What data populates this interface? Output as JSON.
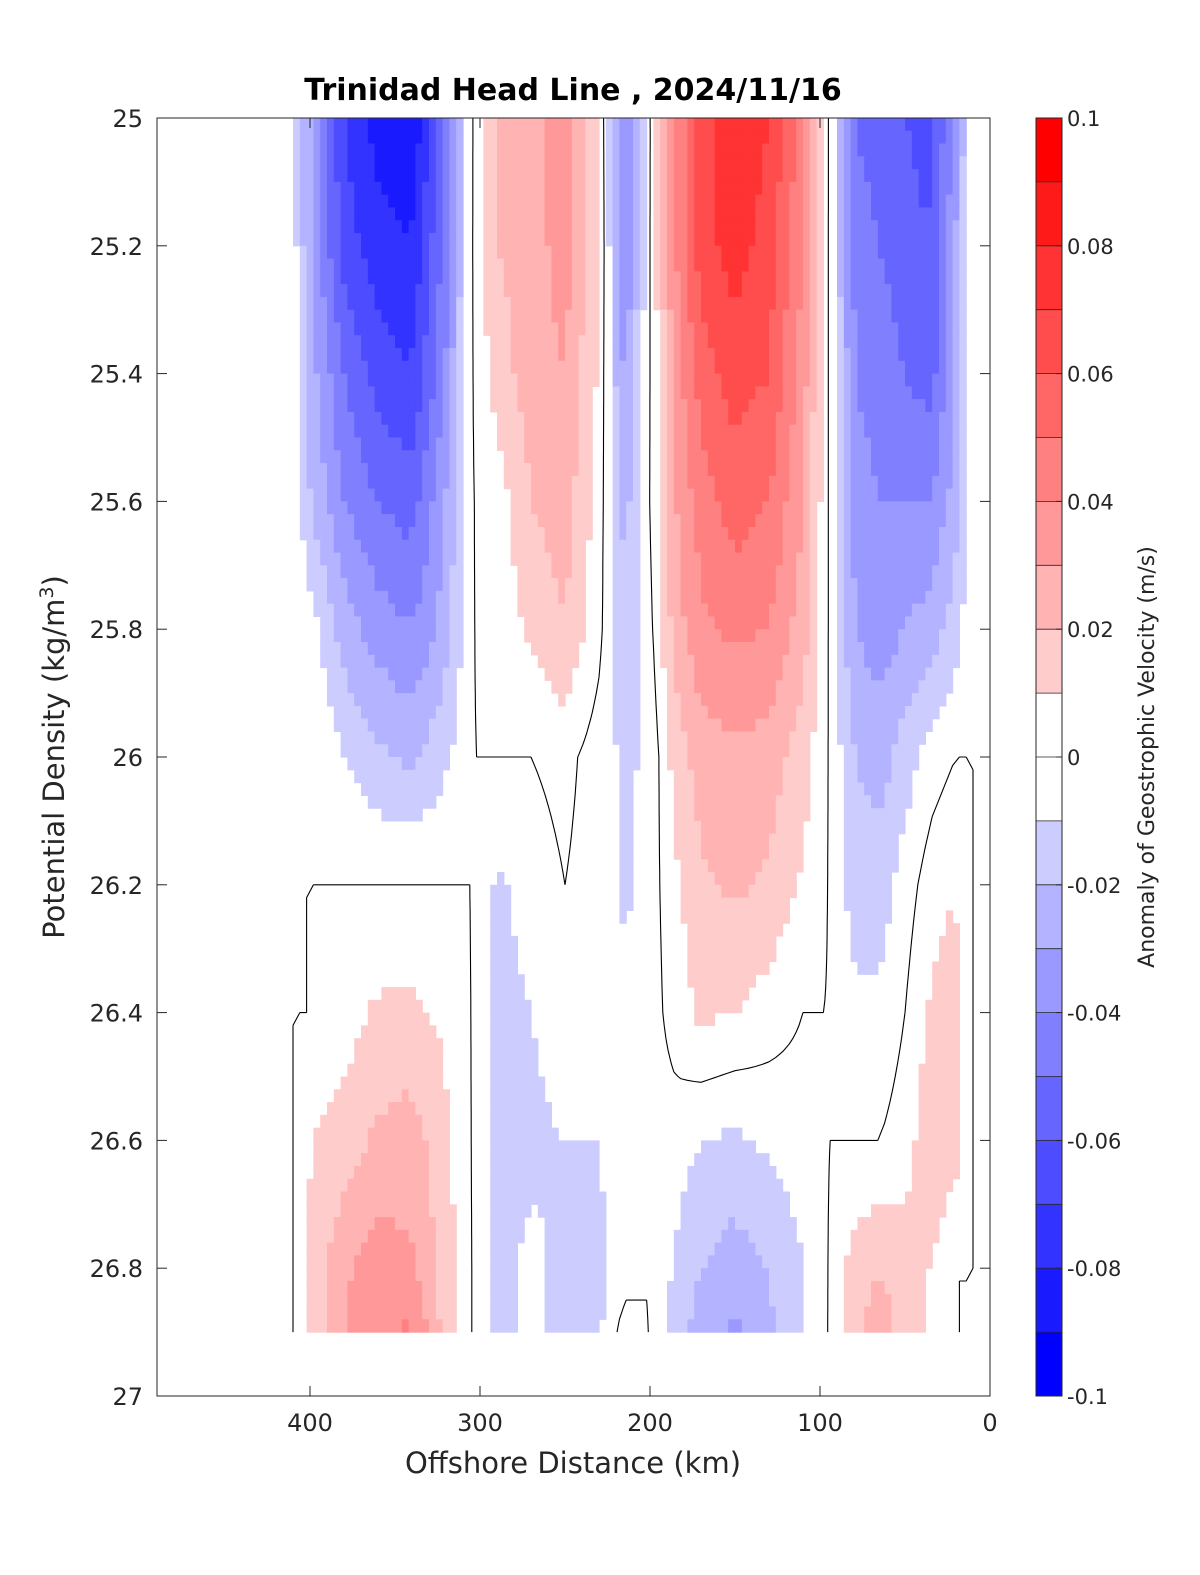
{
  "chart_data": {
    "type": "heatmap",
    "title": "Trinidad Head Line , 2024/11/16",
    "xlabel": "Offshore Distance (km)",
    "ylabel_main": "Potential Density (kg/m",
    "ylabel_sup": "3",
    "ylabel_close": ")",
    "colorbar_label": "Anomaly of Geostrophic Velocity (m/s)",
    "x_reversed": true,
    "xlim": [
      490,
      0
    ],
    "ylim": [
      25,
      27
    ],
    "y_reversed": true,
    "x_ticks": [
      400,
      300,
      200,
      100,
      0
    ],
    "y_ticks": [
      25,
      25.2,
      25.4,
      25.6,
      25.8,
      26,
      26.2,
      26.4,
      26.6,
      26.8,
      27
    ],
    "y_tick_labels": [
      "25",
      "25.2",
      "25.4",
      "25.6",
      "25.8",
      "26",
      "26.2",
      "26.4",
      "26.6",
      "26.8",
      "27"
    ],
    "colorbar_ticks": [
      0.1,
      0.08,
      0.06,
      0.04,
      0.02,
      0,
      -0.02,
      -0.04,
      -0.06,
      -0.08,
      -0.1
    ],
    "colorbar_tick_labels": [
      "0.1",
      "0.08",
      "0.06",
      "0.04",
      "0.02",
      "0",
      "-0.02",
      "-0.04",
      "-0.06",
      "-0.08",
      "-0.1"
    ],
    "clim": [
      -0.1,
      0.1
    ],
    "level_step": 0.01,
    "colormap": "blue-white-red",
    "colors": {
      "max_red": "#ff0000",
      "max_blue": "#0000ff",
      "zero": "#ffffff",
      "contour_line": "#000000"
    },
    "data_extent": {
      "x": [
        410,
        10
      ],
      "y": [
        25,
        26.9
      ]
    },
    "columns_x": [
      410,
      400,
      380,
      360,
      340,
      320,
      305,
      290,
      270,
      250,
      230,
      215,
      200,
      185,
      170,
      150,
      130,
      110,
      95,
      80,
      65,
      50,
      35,
      20,
      10
    ],
    "rows_y": [
      25,
      25.2,
      25.4,
      25.6,
      25.8,
      26,
      26.2,
      26.4,
      26.6,
      26.8,
      26.9
    ],
    "values": [
      [
        -0.005,
        -0.03,
        -0.07,
        -0.085,
        -0.09,
        -0.05,
        0.0,
        0.02,
        0.025,
        0.035,
        0.01,
        -0.045,
        0.0,
        0.04,
        0.065,
        0.08,
        0.07,
        0.045,
        0.0,
        -0.05,
        -0.055,
        -0.06,
        -0.065,
        -0.035,
        0.0
      ],
      [
        -0.005,
        -0.03,
        -0.065,
        -0.075,
        -0.08,
        -0.045,
        0.0,
        0.02,
        0.025,
        0.035,
        0.01,
        -0.04,
        0.0,
        0.04,
        0.065,
        0.075,
        0.065,
        0.04,
        0.0,
        -0.045,
        -0.05,
        -0.055,
        -0.06,
        -0.03,
        0.0
      ],
      [
        -0.005,
        -0.025,
        -0.05,
        -0.065,
        -0.07,
        -0.04,
        0.0,
        0.015,
        0.025,
        0.03,
        0.008,
        -0.035,
        0.0,
        0.035,
        0.055,
        0.065,
        0.06,
        0.035,
        0.0,
        -0.04,
        -0.045,
        -0.05,
        -0.055,
        -0.03,
        0.0
      ],
      [
        -0.003,
        -0.02,
        -0.04,
        -0.05,
        -0.055,
        -0.03,
        0.0,
        0.005,
        0.02,
        0.025,
        0.005,
        -0.025,
        0.0,
        0.03,
        0.045,
        0.055,
        0.05,
        0.03,
        0.0,
        -0.035,
        -0.04,
        -0.04,
        -0.04,
        -0.025,
        0.0
      ],
      [
        0.0,
        -0.005,
        -0.025,
        -0.035,
        -0.04,
        -0.025,
        0.0,
        0.003,
        0.012,
        0.02,
        0.003,
        -0.02,
        -0.003,
        0.025,
        0.038,
        0.042,
        0.04,
        0.025,
        0.0,
        -0.03,
        -0.035,
        -0.03,
        -0.025,
        -0.015,
        0.0
      ],
      [
        0.0,
        0.0,
        -0.01,
        -0.018,
        -0.022,
        -0.012,
        0.0,
        0.0,
        0.0,
        0.003,
        -0.005,
        -0.012,
        -0.008,
        0.015,
        0.025,
        0.028,
        0.025,
        0.015,
        0.0,
        -0.02,
        -0.025,
        -0.015,
        -0.005,
        0.0,
        0.0
      ],
      [
        0.0,
        0.0,
        0.0,
        0.0,
        0.0,
        0.0,
        0.0,
        -0.012,
        -0.005,
        0.0,
        -0.005,
        -0.012,
        -0.005,
        0.008,
        0.018,
        0.022,
        0.018,
        0.008,
        0.0,
        -0.015,
        -0.015,
        -0.005,
        0.005,
        0.01,
        0.0
      ],
      [
        0.0,
        0.0,
        0.005,
        0.012,
        0.012,
        0.008,
        0.0,
        -0.015,
        -0.01,
        -0.005,
        -0.008,
        -0.008,
        -0.005,
        0.005,
        0.012,
        0.01,
        0.005,
        0.0,
        0.0,
        -0.008,
        -0.008,
        0.0,
        0.012,
        0.015,
        0.0
      ],
      [
        0.0,
        0.01,
        0.015,
        0.022,
        0.025,
        0.012,
        0.0,
        -0.015,
        -0.012,
        -0.01,
        -0.01,
        -0.005,
        -0.005,
        -0.005,
        -0.01,
        -0.012,
        -0.008,
        -0.005,
        0.0,
        0.0,
        0.0,
        0.005,
        0.018,
        0.015,
        0.0
      ],
      [
        0.0,
        0.012,
        0.028,
        0.035,
        0.032,
        0.015,
        0.0,
        -0.012,
        -0.008,
        -0.012,
        -0.012,
        -0.005,
        0.0,
        -0.012,
        -0.02,
        -0.025,
        -0.02,
        -0.01,
        0.0,
        0.015,
        0.02,
        0.015,
        0.01,
        0.0,
        0.0
      ],
      [
        0.0,
        0.012,
        0.03,
        0.038,
        0.042,
        0.015,
        0.0,
        -0.012,
        -0.008,
        -0.012,
        -0.012,
        0.005,
        0.0,
        -0.015,
        -0.025,
        -0.032,
        -0.022,
        -0.01,
        0.0,
        0.018,
        0.025,
        0.015,
        0.008,
        0.0,
        0.0
      ]
    ]
  }
}
